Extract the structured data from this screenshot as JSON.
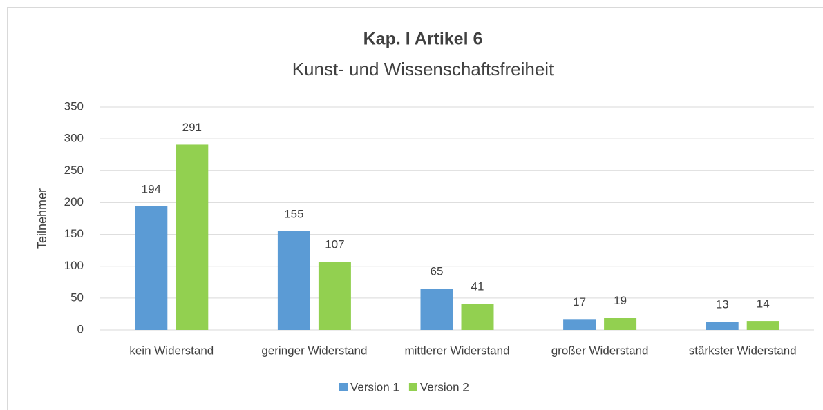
{
  "chart_data": {
    "type": "bar",
    "title": "Kap. I Artikel 6",
    "subtitle": "Kunst- und Wissenschaftsfreiheit",
    "y_label": "Teilnehmer",
    "categories": [
      "kein Widerstand",
      "geringer Widerstand",
      "mittlerer Widerstand",
      "großer Widerstand",
      "stärkster Widerstand"
    ],
    "series": [
      {
        "name": "Version 1",
        "color": "#5b9bd5",
        "values": [
          194,
          155,
          65,
          17,
          13
        ]
      },
      {
        "name": "Version 2",
        "color": "#92d050",
        "values": [
          291,
          107,
          41,
          19,
          14
        ]
      }
    ],
    "ylim": [
      0,
      350
    ],
    "yticks": [
      0,
      50,
      100,
      150,
      200,
      250,
      300,
      350
    ],
    "grid": true,
    "legend": "bottom"
  }
}
